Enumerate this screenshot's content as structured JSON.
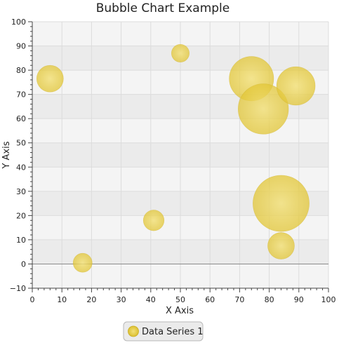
{
  "chart_data": {
    "type": "scatter",
    "subtype": "bubble",
    "title": "Bubble Chart Example",
    "xlabel": "X Axis",
    "ylabel": "Y Axis",
    "xlim": [
      0,
      100
    ],
    "ylim": [
      -10,
      100
    ],
    "x_ticks": [
      0,
      10,
      20,
      30,
      40,
      50,
      60,
      70,
      80,
      90,
      100
    ],
    "y_ticks": [
      -10,
      0,
      10,
      20,
      30,
      40,
      50,
      60,
      70,
      80,
      90,
      100
    ],
    "grid": true,
    "legend_position": "bottom",
    "series": [
      {
        "name": "Data Series 1",
        "color": "#e6cc3a",
        "points": [
          {
            "x": 6,
            "y": 76.5,
            "size": 4.5
          },
          {
            "x": 17,
            "y": 0.5,
            "size": 3.2
          },
          {
            "x": 41,
            "y": 18,
            "size": 3.5
          },
          {
            "x": 50,
            "y": 87,
            "size": 3.0
          },
          {
            "x": 74,
            "y": 76.5,
            "size": 7.5
          },
          {
            "x": 78,
            "y": 64,
            "size": 8.5
          },
          {
            "x": 84,
            "y": 25,
            "size": 9.5
          },
          {
            "x": 84,
            "y": 7.5,
            "size": 4.5
          },
          {
            "x": 89,
            "y": 73.5,
            "size": 6.5
          }
        ]
      }
    ]
  }
}
